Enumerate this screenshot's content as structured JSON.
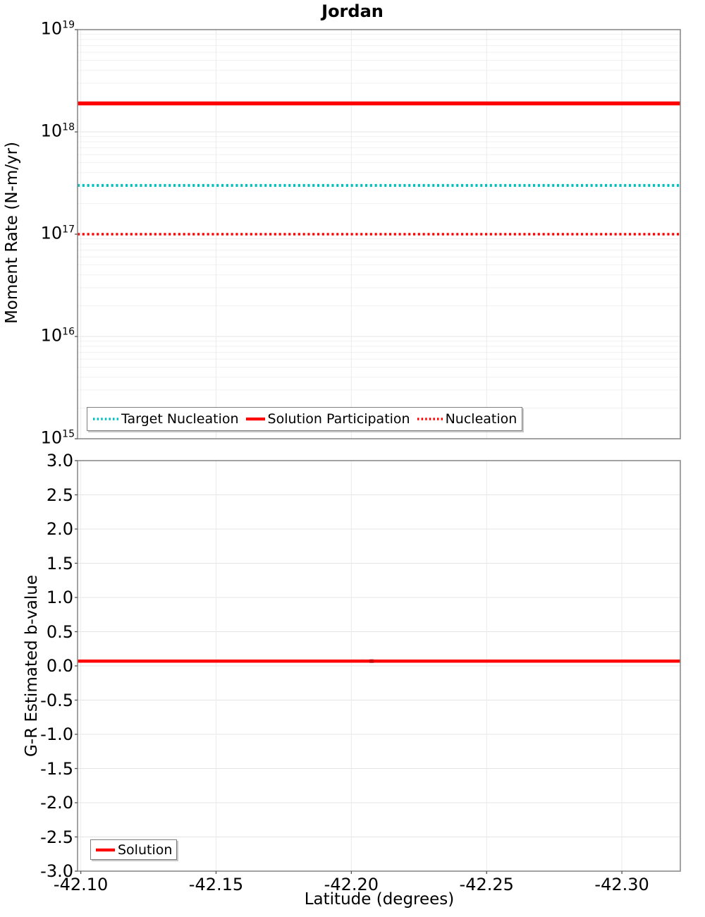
{
  "title": "Jordan",
  "colors": {
    "red": "#ff0000",
    "teal": "#00bfbf",
    "marker_red": "#cc0000",
    "grid_minor": "#f1f1f1",
    "grid_major": "#e4e4e4",
    "grid_vertical": "#ebebeb",
    "spine": "#8c8c8c",
    "tick": "#555555",
    "text": "#000000",
    "legend_border": "#7f7f7f"
  },
  "chart_data": [
    {
      "id": "moment-rate",
      "type": "line",
      "title": "Jordan",
      "ylabel": "Moment Rate (N-m/yr)",
      "yscale": "log",
      "ylim": [
        1000000000000000.0,
        1e+19
      ],
      "y_ticks": [
        {
          "exp": 19
        },
        {
          "exp": 18
        },
        {
          "exp": 17
        },
        {
          "exp": 16
        },
        {
          "exp": 15
        }
      ],
      "xlim": [
        -42.0988,
        -42.3216
      ],
      "x_axis_reversed": true,
      "x_ticks": [
        {
          "value": -42.1,
          "label": "-42.10"
        },
        {
          "value": -42.15,
          "label": "-42.15"
        },
        {
          "value": -42.2,
          "label": "-42.20"
        },
        {
          "value": -42.25,
          "label": "-42.25"
        },
        {
          "value": -42.3,
          "label": "-42.30"
        }
      ],
      "x_tick_labels_visible": false,
      "grid": true,
      "legend_position": "lower left",
      "series": [
        {
          "name": "Target Nucleation",
          "style": "dotted",
          "color": "#00bfbf",
          "value": 3e+17,
          "width": 4
        },
        {
          "name": "Solution Participation",
          "style": "solid",
          "color": "#ff0000",
          "value": 1.9e+18,
          "width": 5.5
        },
        {
          "name": "Nucleation",
          "style": "dotted",
          "color": "#ff0000",
          "value": 1e+17,
          "width": 3.6
        }
      ]
    },
    {
      "id": "b-value",
      "type": "line",
      "ylabel": "G-R Estimated b-value",
      "xlabel": "Latitude (degrees)",
      "yscale": "linear",
      "ylim": [
        -3.0,
        3.0
      ],
      "y_ticks": [
        {
          "value": 3.0,
          "label": "3.0"
        },
        {
          "value": 2.5,
          "label": "2.5"
        },
        {
          "value": 2.0,
          "label": "2.0"
        },
        {
          "value": 1.5,
          "label": "1.5"
        },
        {
          "value": 1.0,
          "label": "1.0"
        },
        {
          "value": 0.5,
          "label": "0.5"
        },
        {
          "value": 0.0,
          "label": "0.0"
        },
        {
          "value": -0.5,
          "label": "-0.5"
        },
        {
          "value": -1.0,
          "label": "-1.0"
        },
        {
          "value": -1.5,
          "label": "-1.5"
        },
        {
          "value": -2.0,
          "label": "-2.0"
        },
        {
          "value": -2.5,
          "label": "-2.5"
        },
        {
          "value": -3.0,
          "label": "-3.0"
        }
      ],
      "xlim": [
        -42.0988,
        -42.3216
      ],
      "x_axis_reversed": true,
      "x_ticks": [
        {
          "value": -42.1,
          "label": "-42.10"
        },
        {
          "value": -42.15,
          "label": "-42.15"
        },
        {
          "value": -42.2,
          "label": "-42.20"
        },
        {
          "value": -42.25,
          "label": "-42.25"
        },
        {
          "value": -42.3,
          "label": "-42.30"
        }
      ],
      "x_tick_labels_visible": true,
      "grid": true,
      "legend_position": "lower left",
      "series": [
        {
          "name": "Solution",
          "style": "solid",
          "color": "#ff0000",
          "value": 0.07,
          "width": 4.5,
          "marker": {
            "x": -42.2075,
            "color": "#cc0000",
            "size": 6
          }
        }
      ]
    }
  ]
}
